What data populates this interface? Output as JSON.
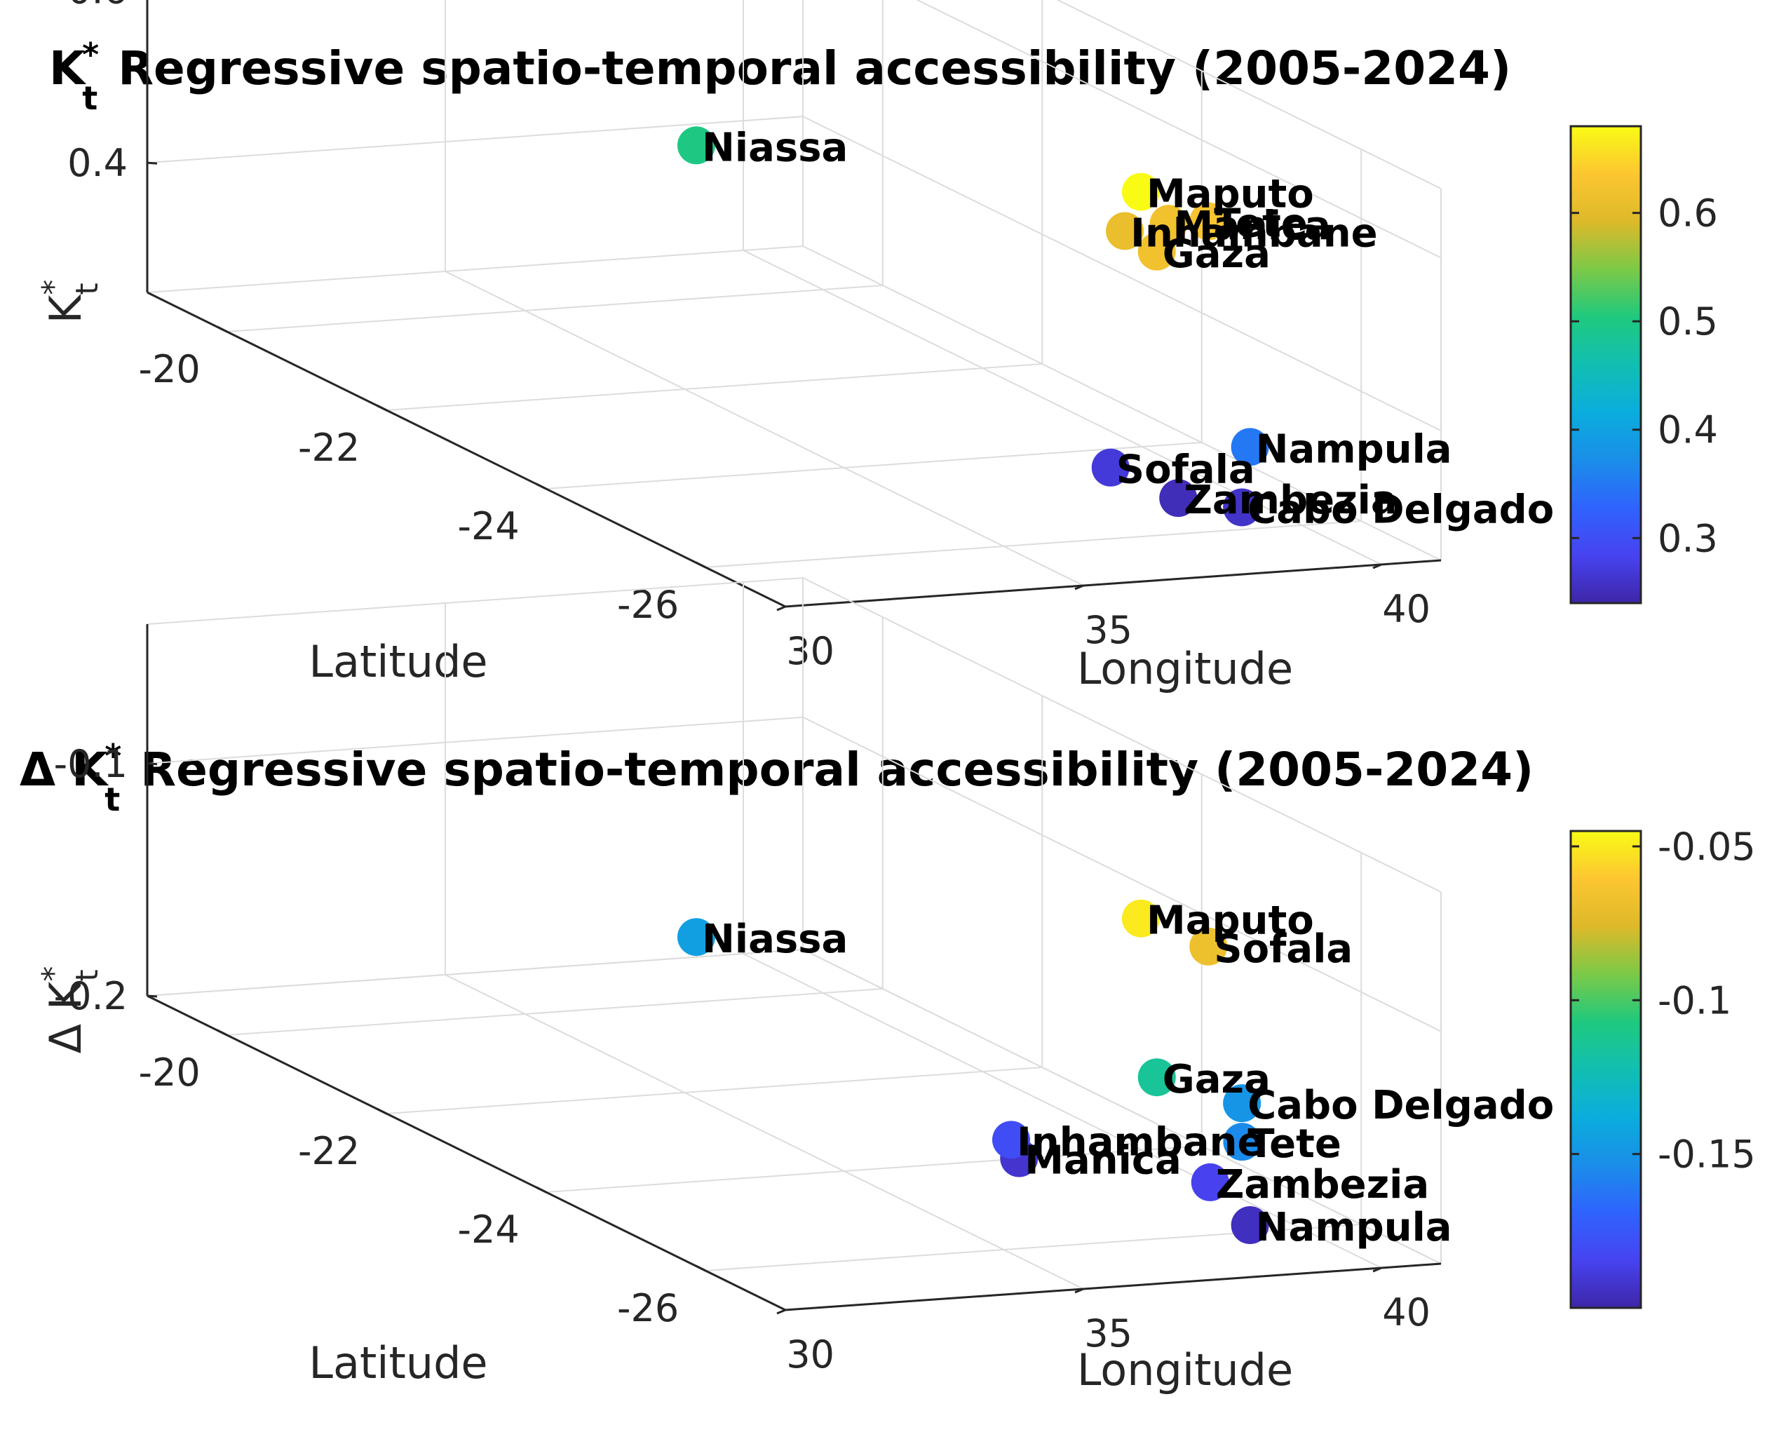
{
  "chart_data": [
    {
      "type": "scatter3d",
      "title": "K_t^* Regressive spatio-temporal accessibility (2005-2024)",
      "title_parts": {
        "prefix": "",
        "symbol": "K",
        "sup": "*",
        "sub": "t",
        "rest": " Regressive spatio-temporal accessibility (2005-2024)"
      },
      "xlabel": "Longitude",
      "ylabel": "Latitude",
      "zlabel": {
        "prefix": "",
        "symbol": "K",
        "sup": "*",
        "sub": "t"
      },
      "xlim": [
        30,
        41
      ],
      "ylim": [
        -19,
        -27
      ],
      "zlim": [
        0.25,
        0.68
      ],
      "xticks": [
        30,
        35,
        40
      ],
      "yticks": [
        -20,
        -22,
        -24,
        -26
      ],
      "zticks": [
        0.4,
        0.6
      ],
      "ztick_labels": [
        "0.4",
        "0.6"
      ],
      "clim": [
        0.24,
        0.68
      ],
      "cticks": [
        0.3,
        0.4,
        0.5,
        0.6
      ],
      "cticks_labels": [
        "0.3",
        "0.4",
        "0.5",
        "0.6"
      ],
      "points": [
        {
          "name": "Niassa",
          "lon": 36.0,
          "lat": -21.4,
          "value": 0.5
        },
        {
          "name": "Tete",
          "lon": 37.9,
          "lat": -26.4,
          "value": 0.63
        },
        {
          "name": "Manica",
          "lon": 37.5,
          "lat": -26.2,
          "value": 0.62
        },
        {
          "name": "Inhambane",
          "lon": 36.9,
          "lat": -26.1,
          "value": 0.61
        },
        {
          "name": "Maputo",
          "lon": 36.5,
          "lat": -26.6,
          "value": 0.68
        },
        {
          "name": "Gaza",
          "lon": 36.5,
          "lat": -26.8,
          "value": 0.62
        },
        {
          "name": "Nampula",
          "lon": 39.0,
          "lat": -26.1,
          "value": 0.35
        },
        {
          "name": "Cabo Delgado",
          "lon": 39.4,
          "lat": -25.7,
          "value": 0.26
        },
        {
          "name": "Zambezia",
          "lon": 39.0,
          "lat": -25.2,
          "value": 0.25
        },
        {
          "name": "Sofala",
          "lon": 38.4,
          "lat": -24.8,
          "value": 0.27
        }
      ]
    },
    {
      "type": "scatter3d",
      "title": "Δ K_t^* Regressive spatio-temporal accessibility (2005-2024)",
      "title_parts": {
        "prefix": "Δ ",
        "symbol": "K",
        "sup": "*",
        "sub": "t",
        "rest": " Regressive spatio-temporal accessibility (2005-2024)"
      },
      "xlabel": "Longitude",
      "ylabel": "Latitude",
      "zlabel": {
        "prefix": "Δ ",
        "symbol": "K",
        "sup": "*",
        "sub": "t"
      },
      "xlim": [
        30,
        41
      ],
      "ylim": [
        -19,
        -27
      ],
      "zlim": [
        -0.2,
        -0.04
      ],
      "xticks": [
        30,
        35,
        40
      ],
      "yticks": [
        -20,
        -22,
        -24,
        -26
      ],
      "zticks": [
        -0.2,
        -0.1
      ],
      "ztick_labels": [
        "-0.2",
        "-0.1"
      ],
      "clim": [
        -0.2,
        -0.045
      ],
      "cticks": [
        -0.15,
        -0.1,
        -0.05
      ],
      "cticks_labels": [
        "-0.15",
        "-0.1",
        "-0.05"
      ],
      "points": [
        {
          "name": "Niassa",
          "lon": 36.0,
          "lat": -21.4,
          "value": -0.145
        },
        {
          "name": "Sofala",
          "lon": 37.9,
          "lat": -26.4,
          "value": -0.068
        },
        {
          "name": "Cabo Delgado",
          "lon": 39.4,
          "lat": -25.7,
          "value": -0.15
        },
        {
          "name": "Maputo",
          "lon": 36.5,
          "lat": -26.6,
          "value": -0.05
        },
        {
          "name": "Gaza",
          "lon": 36.5,
          "lat": -26.8,
          "value": -0.115
        },
        {
          "name": "Tete",
          "lon": 38.6,
          "lat": -26.3,
          "value": -0.155
        },
        {
          "name": "Nampula",
          "lon": 39.0,
          "lat": -26.1,
          "value": -0.195
        },
        {
          "name": "Zambezia",
          "lon": 39.0,
          "lat": -25.6,
          "value": -0.185
        },
        {
          "name": "Inhambane",
          "lon": 37.0,
          "lat": -24.6,
          "value": -0.18
        },
        {
          "name": "Manica",
          "lon": 37.4,
          "lat": -24.4,
          "value": -0.192
        }
      ]
    }
  ]
}
